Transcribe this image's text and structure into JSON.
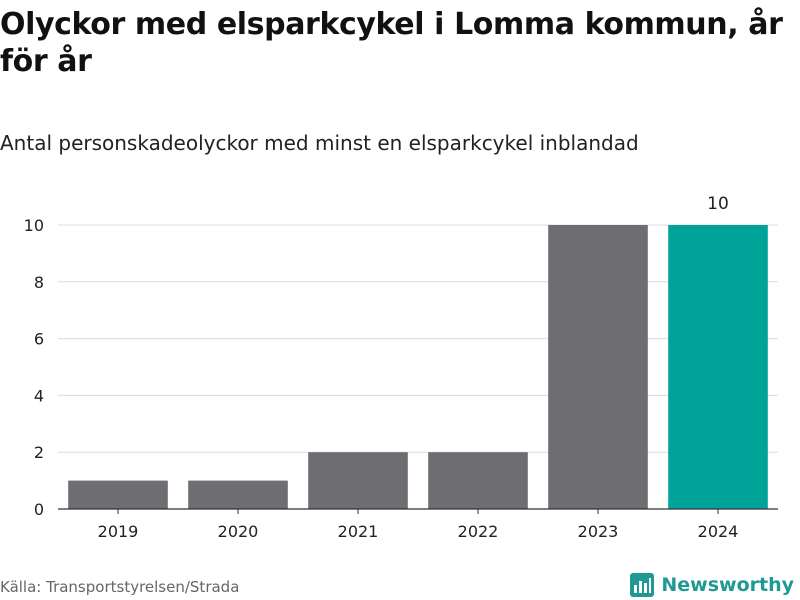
{
  "title": "Olyckor med elsparkcykel i Lomma kommun, år för år",
  "subtitle": "Antal personskadeolyckor med minst en elsparkcykel inblandad",
  "source": "Källa: Transportstyrelsen/Strada",
  "brand": {
    "name": "Newsworthy",
    "logo_icon": "newsworthy-logo-icon",
    "color": "#1f9a92"
  },
  "chart_data": {
    "type": "bar",
    "title": "",
    "xlabel": "",
    "ylabel": "",
    "categories": [
      "2019",
      "2020",
      "2021",
      "2022",
      "2023",
      "2024"
    ],
    "values": [
      1,
      1,
      2,
      2,
      10,
      10
    ],
    "ylim": [
      0,
      10
    ],
    "yticks": [
      0,
      2,
      4,
      6,
      8,
      10
    ],
    "grid": true,
    "legend": "none",
    "colors": {
      "default": "#6d6d72",
      "highlight": "#00a397"
    },
    "highlight_category": "2024",
    "data_labels": [
      {
        "category": "2024",
        "text": "10"
      }
    ]
  }
}
